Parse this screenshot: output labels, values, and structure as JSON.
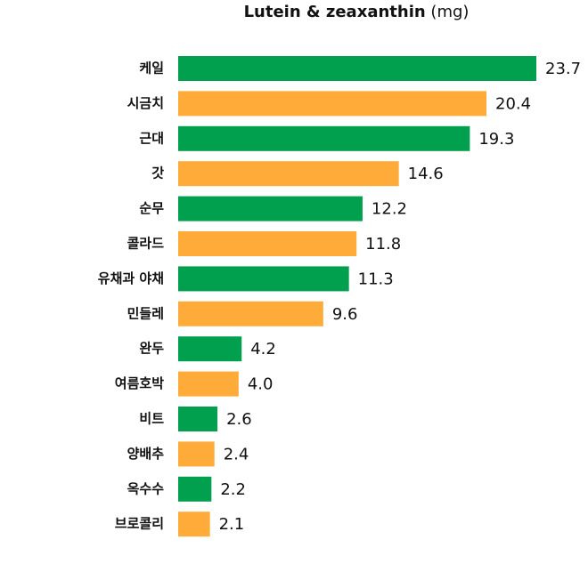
{
  "chart_data": {
    "type": "bar",
    "orientation": "horizontal",
    "title": "Lutein & zeaxanthin",
    "title_unit": "(mg)",
    "categories": [
      "케일",
      "시금치",
      "근대",
      "갓",
      "순무",
      "콜라드",
      "유채과 야채",
      "민들레",
      "완두",
      "여름호박",
      "비트",
      "양배추",
      "옥수수",
      "브로콜리"
    ],
    "values": [
      23.7,
      20.4,
      19.3,
      14.6,
      12.2,
      11.8,
      11.3,
      9.6,
      4.2,
      4.0,
      2.6,
      2.4,
      2.2,
      2.1
    ],
    "value_labels": [
      "23.7",
      "20.4",
      "19.3",
      "14.6",
      "12.2",
      "11.8",
      "11.3",
      "9.6",
      "4.2",
      "4.0",
      "2.6",
      "2.4",
      "2.2",
      "2.1"
    ],
    "colors": [
      "#00a04e",
      "#ffab3a",
      "#00a04e",
      "#ffab3a",
      "#00a04e",
      "#ffab3a",
      "#00a04e",
      "#ffab3a",
      "#00a04e",
      "#ffab3a",
      "#00a04e",
      "#ffab3a",
      "#00a04e",
      "#ffab3a"
    ]
  }
}
